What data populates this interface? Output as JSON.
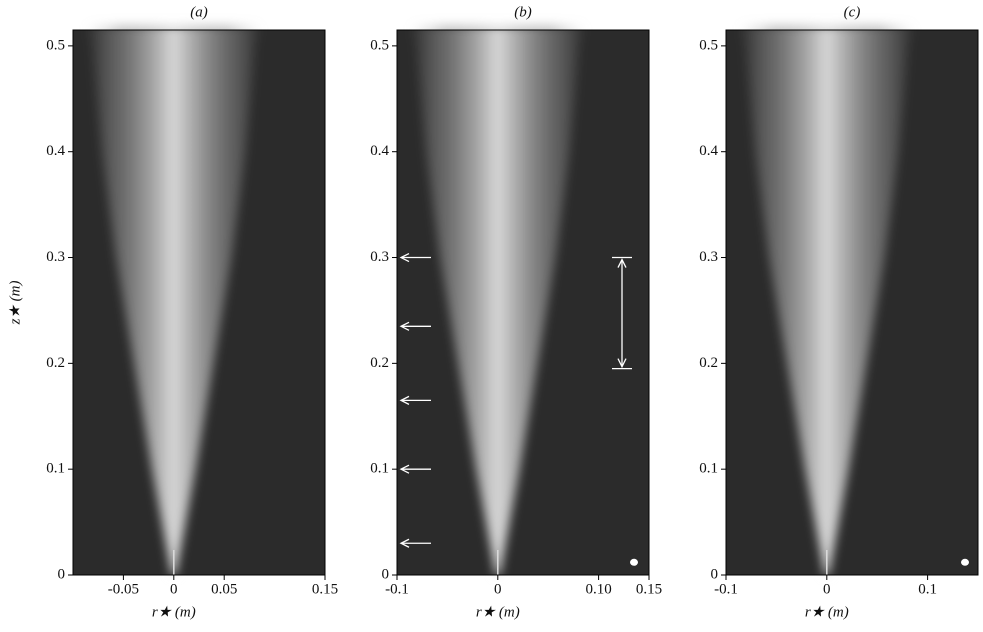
{
  "chart_data": [
    {
      "type": "image",
      "title": "(a)",
      "xlabel": "r★ (m)",
      "ylabel": "z★ (m)",
      "xlim": [
        -0.1,
        0.15
      ],
      "xticks": [
        -0.05,
        0,
        0.05,
        0.15
      ],
      "ylim": [
        0,
        0.515
      ],
      "yticks": [
        0,
        0.1,
        0.2,
        0.3,
        0.4,
        0.5
      ]
    },
    {
      "type": "image",
      "title": "(b)",
      "xlabel": "r★ (m)",
      "xlim": [
        -0.1,
        0.15
      ],
      "xticks": [
        -0.1,
        0,
        {
          "value": 0.1,
          "label": "0.10"
        },
        0.15
      ],
      "ylim": [
        0,
        0.515
      ],
      "yticks": [
        0,
        0.1,
        0.2,
        0.3,
        0.4,
        0.5
      ]
    },
    {
      "type": "image",
      "title": "(c)",
      "xlabel": "r★ (m)",
      "xlim": [
        -0.1,
        0.15
      ],
      "xticks": [
        -0.1,
        0,
        0.1
      ],
      "ylim": [
        0,
        0.515
      ],
      "yticks": [
        0,
        0.1,
        0.2,
        0.3,
        0.4,
        0.5
      ]
    }
  ]
}
